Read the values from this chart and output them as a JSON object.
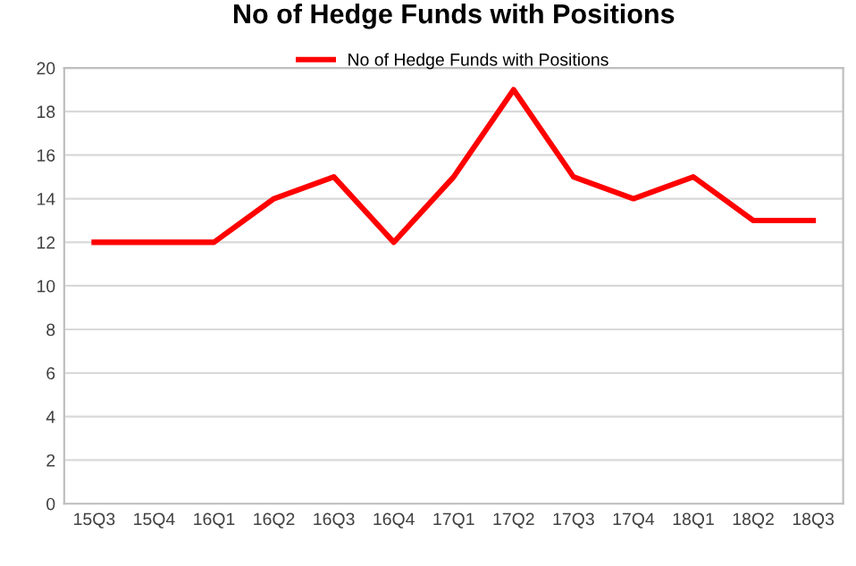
{
  "chart_data": {
    "type": "line",
    "title": "No of Hedge Funds with Positions",
    "categories": [
      "15Q3",
      "15Q4",
      "16Q1",
      "16Q2",
      "16Q3",
      "16Q4",
      "17Q1",
      "17Q2",
      "17Q3",
      "17Q4",
      "18Q1",
      "18Q2",
      "18Q3"
    ],
    "series": [
      {
        "name": "No of Hedge Funds with Positions",
        "color": "#ff0000",
        "values": [
          12,
          12,
          12,
          14,
          15,
          12,
          15,
          19,
          15,
          14,
          15,
          13,
          13
        ]
      }
    ],
    "ylim": [
      0,
      20
    ],
    "yticks": [
      0,
      2,
      4,
      6,
      8,
      10,
      12,
      14,
      16,
      18,
      20
    ],
    "grid": "y",
    "legend": "top",
    "marker": "none",
    "line_style": "solid"
  }
}
